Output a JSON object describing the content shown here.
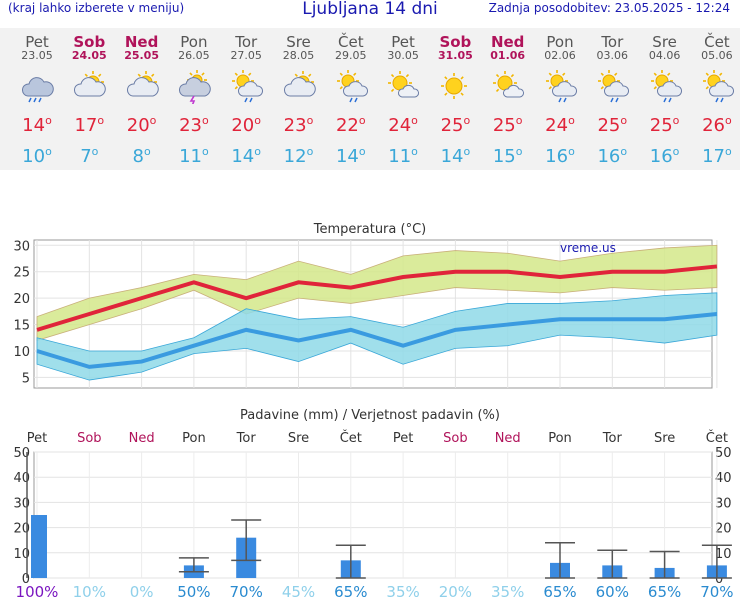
{
  "header": {
    "left": "(kraj lahko izberete v meniju)",
    "title": "Ljubljana 14 dni",
    "right": "Zadnja posodobitev: 23.05.2025 - 12:24"
  },
  "days": [
    {
      "name": "Pet",
      "date": "23.05",
      "weekend": false,
      "icon": "rain-cloud-icon",
      "max": "14",
      "min": "10"
    },
    {
      "name": "Sob",
      "date": "24.05",
      "weekend": true,
      "icon": "partly-cloudy-icon",
      "max": "17",
      "min": "7"
    },
    {
      "name": "Ned",
      "date": "25.05",
      "weekend": true,
      "icon": "partly-cloudy-icon",
      "max": "20",
      "min": "8"
    },
    {
      "name": "Pon",
      "date": "26.05",
      "weekend": false,
      "icon": "thunderstorm-icon",
      "max": "23",
      "min": "11"
    },
    {
      "name": "Tor",
      "date": "27.05",
      "weekend": false,
      "icon": "sun-cloud-rain-icon",
      "max": "20",
      "min": "14"
    },
    {
      "name": "Sre",
      "date": "28.05",
      "weekend": false,
      "icon": "partly-cloudy-icon",
      "max": "23",
      "min": "12"
    },
    {
      "name": "Čet",
      "date": "29.05",
      "weekend": false,
      "icon": "sun-cloud-rain-icon",
      "max": "22",
      "min": "14"
    },
    {
      "name": "Pet",
      "date": "30.05",
      "weekend": false,
      "icon": "sun-small-cloud-icon",
      "max": "24",
      "min": "11"
    },
    {
      "name": "Sob",
      "date": "31.05",
      "weekend": true,
      "icon": "sun-icon",
      "max": "25",
      "min": "14"
    },
    {
      "name": "Ned",
      "date": "01.06",
      "weekend": true,
      "icon": "sun-small-cloud-icon",
      "max": "25",
      "min": "15"
    },
    {
      "name": "Pon",
      "date": "02.06",
      "weekend": false,
      "icon": "sun-cloud-rain-icon",
      "max": "24",
      "min": "16"
    },
    {
      "name": "Tor",
      "date": "03.06",
      "weekend": false,
      "icon": "sun-cloud-rain-icon",
      "max": "25",
      "min": "16"
    },
    {
      "name": "Sre",
      "date": "04.06",
      "weekend": false,
      "icon": "sun-cloud-rain-icon",
      "max": "25",
      "min": "16"
    },
    {
      "name": "Čet",
      "date": "05.06",
      "weekend": false,
      "icon": "sun-cloud-rain-icon",
      "max": "26",
      "min": "17"
    }
  ],
  "temp_chart": {
    "title": "Temperatura (°C)",
    "watermark": "vreme.us",
    "yticks": [
      "30",
      "25",
      "20",
      "15",
      "10",
      "5"
    ]
  },
  "precip_chart": {
    "title": "Padavine (mm) / Verjetnost padavin (%)",
    "day_labels": [
      "Pet",
      "Sob",
      "Ned",
      "Pon",
      "Tor",
      "Sre",
      "Čet",
      "Pet",
      "Sob",
      "Ned",
      "Pon",
      "Tor",
      "Sre",
      "Čet"
    ],
    "yticks": [
      "50",
      "40",
      "30",
      "20",
      "10",
      "0"
    ],
    "probabilities": [
      "100%",
      "10%",
      "0%",
      "50%",
      "70%",
      "45%",
      "65%",
      "35%",
      "20%",
      "35%",
      "65%",
      "60%",
      "65%",
      "70%"
    ]
  },
  "chart_data": [
    {
      "type": "line",
      "title": "Temperatura (°C)",
      "ylim": [
        3,
        31
      ],
      "x": [
        0,
        1,
        2,
        3,
        4,
        5,
        6,
        7,
        8,
        9,
        10,
        11,
        12,
        13
      ],
      "series": [
        {
          "values": [
            14,
            17,
            20,
            23,
            20,
            23,
            22,
            24,
            25,
            25,
            24,
            25,
            25,
            26
          ]
        },
        {
          "values": [
            10,
            7,
            8,
            11,
            14,
            12,
            14,
            11,
            14,
            15,
            16,
            16,
            16,
            17
          ]
        }
      ],
      "bands": [
        {
          "upper": [
            16.5,
            20,
            22,
            24.5,
            23.5,
            27,
            24.5,
            28,
            29,
            28.5,
            27,
            28.5,
            29.5,
            30
          ],
          "lower": [
            12,
            15,
            18,
            21.5,
            17,
            20,
            19,
            20.5,
            22,
            21.5,
            21,
            22,
            21.5,
            22
          ]
        },
        {
          "upper": [
            12.5,
            10,
            10,
            12.5,
            18,
            16,
            16.5,
            14.5,
            17.5,
            19,
            19,
            19.5,
            20.5,
            21
          ],
          "lower": [
            7.5,
            4.5,
            6,
            9.5,
            10.5,
            8,
            11.5,
            7.5,
            10.5,
            11,
            13,
            12.5,
            11.5,
            13
          ]
        }
      ]
    },
    {
      "type": "bar",
      "title": "Padavine (mm) / Verjetnost padavin (%)",
      "categories": [
        "Pet",
        "Sob",
        "Ned",
        "Pon",
        "Tor",
        "Sre",
        "Čet",
        "Pet",
        "Sob",
        "Ned",
        "Pon",
        "Tor",
        "Sre",
        "Čet"
      ],
      "ylim": [
        0,
        50
      ],
      "values": [
        25,
        0,
        0,
        5,
        16,
        0,
        7,
        0,
        0,
        0,
        6,
        5,
        4,
        5
      ],
      "error_high": [
        50,
        0,
        0,
        8,
        23,
        0,
        13,
        0,
        0,
        0,
        14,
        11,
        10.5,
        13
      ],
      "error_low": [
        0,
        0,
        0,
        2.5,
        7,
        0,
        0,
        0,
        0,
        0,
        0,
        0,
        0,
        0
      ],
      "probabilities": [
        100,
        10,
        0,
        50,
        70,
        45,
        65,
        35,
        20,
        35,
        65,
        60,
        65,
        70
      ]
    }
  ],
  "colors": {
    "max": "#e0243a",
    "min": "#3aa7d8",
    "weekend": "#b0135a",
    "band_max": "#d4e88a",
    "band_min": "#8fd9e8",
    "bar": "#3a8ae0"
  }
}
